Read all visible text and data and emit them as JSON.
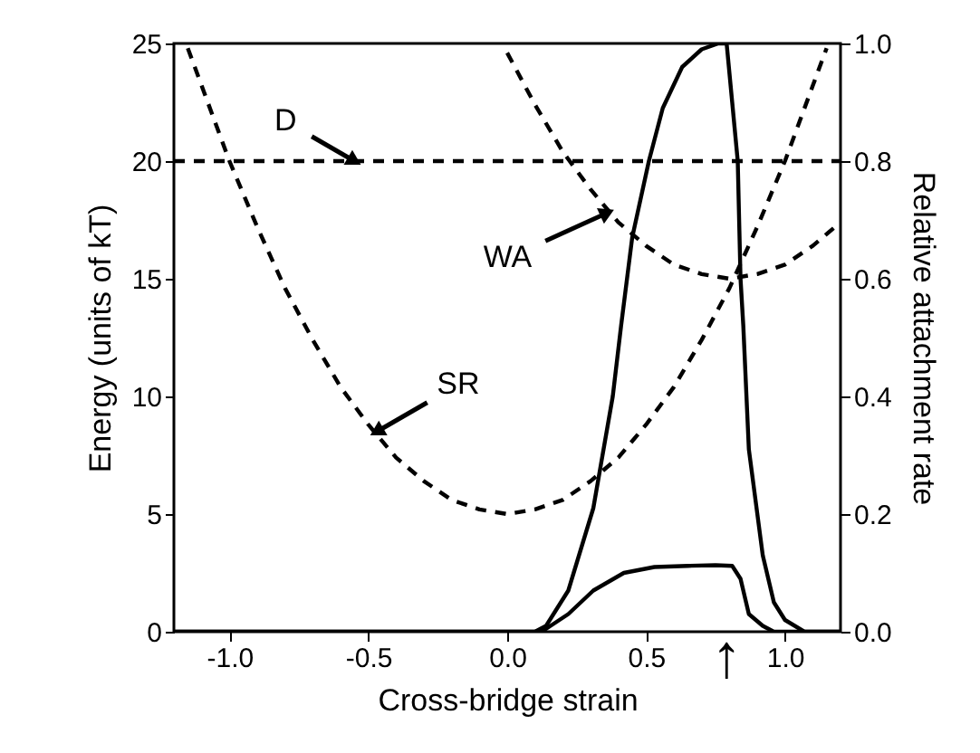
{
  "chart_data": {
    "type": "line",
    "xlabel": "Cross-bridge strain",
    "ylabel": "Energy (units of kT)",
    "y2label": "Relative attachment rate",
    "xlim": [
      -1.2,
      1.2
    ],
    "xticks": [
      {
        "value": -1,
        "label": "-1.0"
      },
      -0.5,
      {
        "value": 0,
        "label": "0.0"
      },
      0.5,
      {
        "value": 1,
        "label": "1.0"
      }
    ],
    "ylim": [
      0,
      25
    ],
    "yticks": [
      0,
      5,
      10,
      15,
      20,
      25
    ],
    "y2lim": [
      0,
      1
    ],
    "y2ticks": [
      {
        "value": 0,
        "label": "0.0"
      },
      0.2,
      0.4,
      0.6,
      0.8,
      {
        "value": 1,
        "label": "1.0"
      }
    ],
    "grid": false,
    "series": [
      {
        "color": "#000000",
        "line_style": "dashed",
        "x": [
          -1.2,
          1.2
        ],
        "values": [
          20,
          20
        ]
      },
      {
        "color": "#000000",
        "line_style": "dashed",
        "x": [
          -1.15,
          -1.1,
          -1.0,
          -0.9,
          -0.8,
          -0.7,
          -0.6,
          -0.5,
          -0.4,
          -0.3,
          -0.2,
          -0.1,
          0,
          0.1,
          0.2,
          0.3,
          0.4,
          0.5,
          0.6,
          0.7,
          0.8,
          0.9,
          1.0,
          1.1,
          1.15
        ],
        "values": [
          24.8,
          23.2,
          20,
          17.2,
          14.6,
          12.4,
          10.4,
          8.8,
          7.4,
          6.4,
          5.6,
          5.2,
          5,
          5.2,
          5.6,
          6.4,
          7.4,
          8.8,
          10.4,
          12.4,
          14.6,
          17.2,
          20,
          23.2,
          24.8
        ]
      },
      {
        "color": "#000000",
        "line_style": "dashed",
        "x": [
          0.0,
          0.1,
          0.2,
          0.3,
          0.4,
          0.5,
          0.6,
          0.7,
          0.8,
          0.9,
          1.0,
          1.1,
          1.2
        ],
        "values": [
          24.6,
          22.4,
          20.4,
          18.8,
          17.4,
          16.4,
          15.6,
          15.2,
          15,
          15.2,
          15.6,
          16.4,
          17.4
        ]
      },
      {
        "color": "#000000",
        "line_style": "solid",
        "axis": "y2",
        "x": [
          -1.2,
          0.1,
          0.14,
          0.22,
          0.31,
          0.38,
          0.41,
          0.45,
          0.51,
          0.56,
          0.63,
          0.7,
          0.76,
          0.79,
          0.81,
          0.83,
          0.84,
          0.85,
          0.87,
          0.92,
          0.96,
          1.0,
          1.07,
          1.2
        ],
        "values": [
          0,
          0,
          0.01,
          0.07,
          0.21,
          0.4,
          0.52,
          0.67,
          0.8,
          0.89,
          0.96,
          0.99,
          1.0,
          1.0,
          0.9,
          0.8,
          0.6,
          0.52,
          0.31,
          0.13,
          0.05,
          0.02,
          0,
          0
        ]
      },
      {
        "color": "#000000",
        "line_style": "solid",
        "axis": "y2",
        "x": [
          -1.2,
          0.1,
          0.14,
          0.22,
          0.31,
          0.42,
          0.53,
          0.65,
          0.75,
          0.81,
          0.84,
          0.87,
          0.92,
          0.96,
          1.0,
          1.2
        ],
        "values": [
          0,
          0,
          0.005,
          0.03,
          0.07,
          0.1,
          0.11,
          0.112,
          0.113,
          0.112,
          0.09,
          0.03,
          0.01,
          0,
          0,
          0
        ]
      }
    ],
    "annotations": [
      {
        "text": "D",
        "x": -0.55,
        "y": 20
      },
      {
        "text": "WA",
        "x": 0.36,
        "y": 17.8
      },
      {
        "text": "SR",
        "x": -0.47,
        "y": 8.5
      },
      "↑"
    ]
  }
}
